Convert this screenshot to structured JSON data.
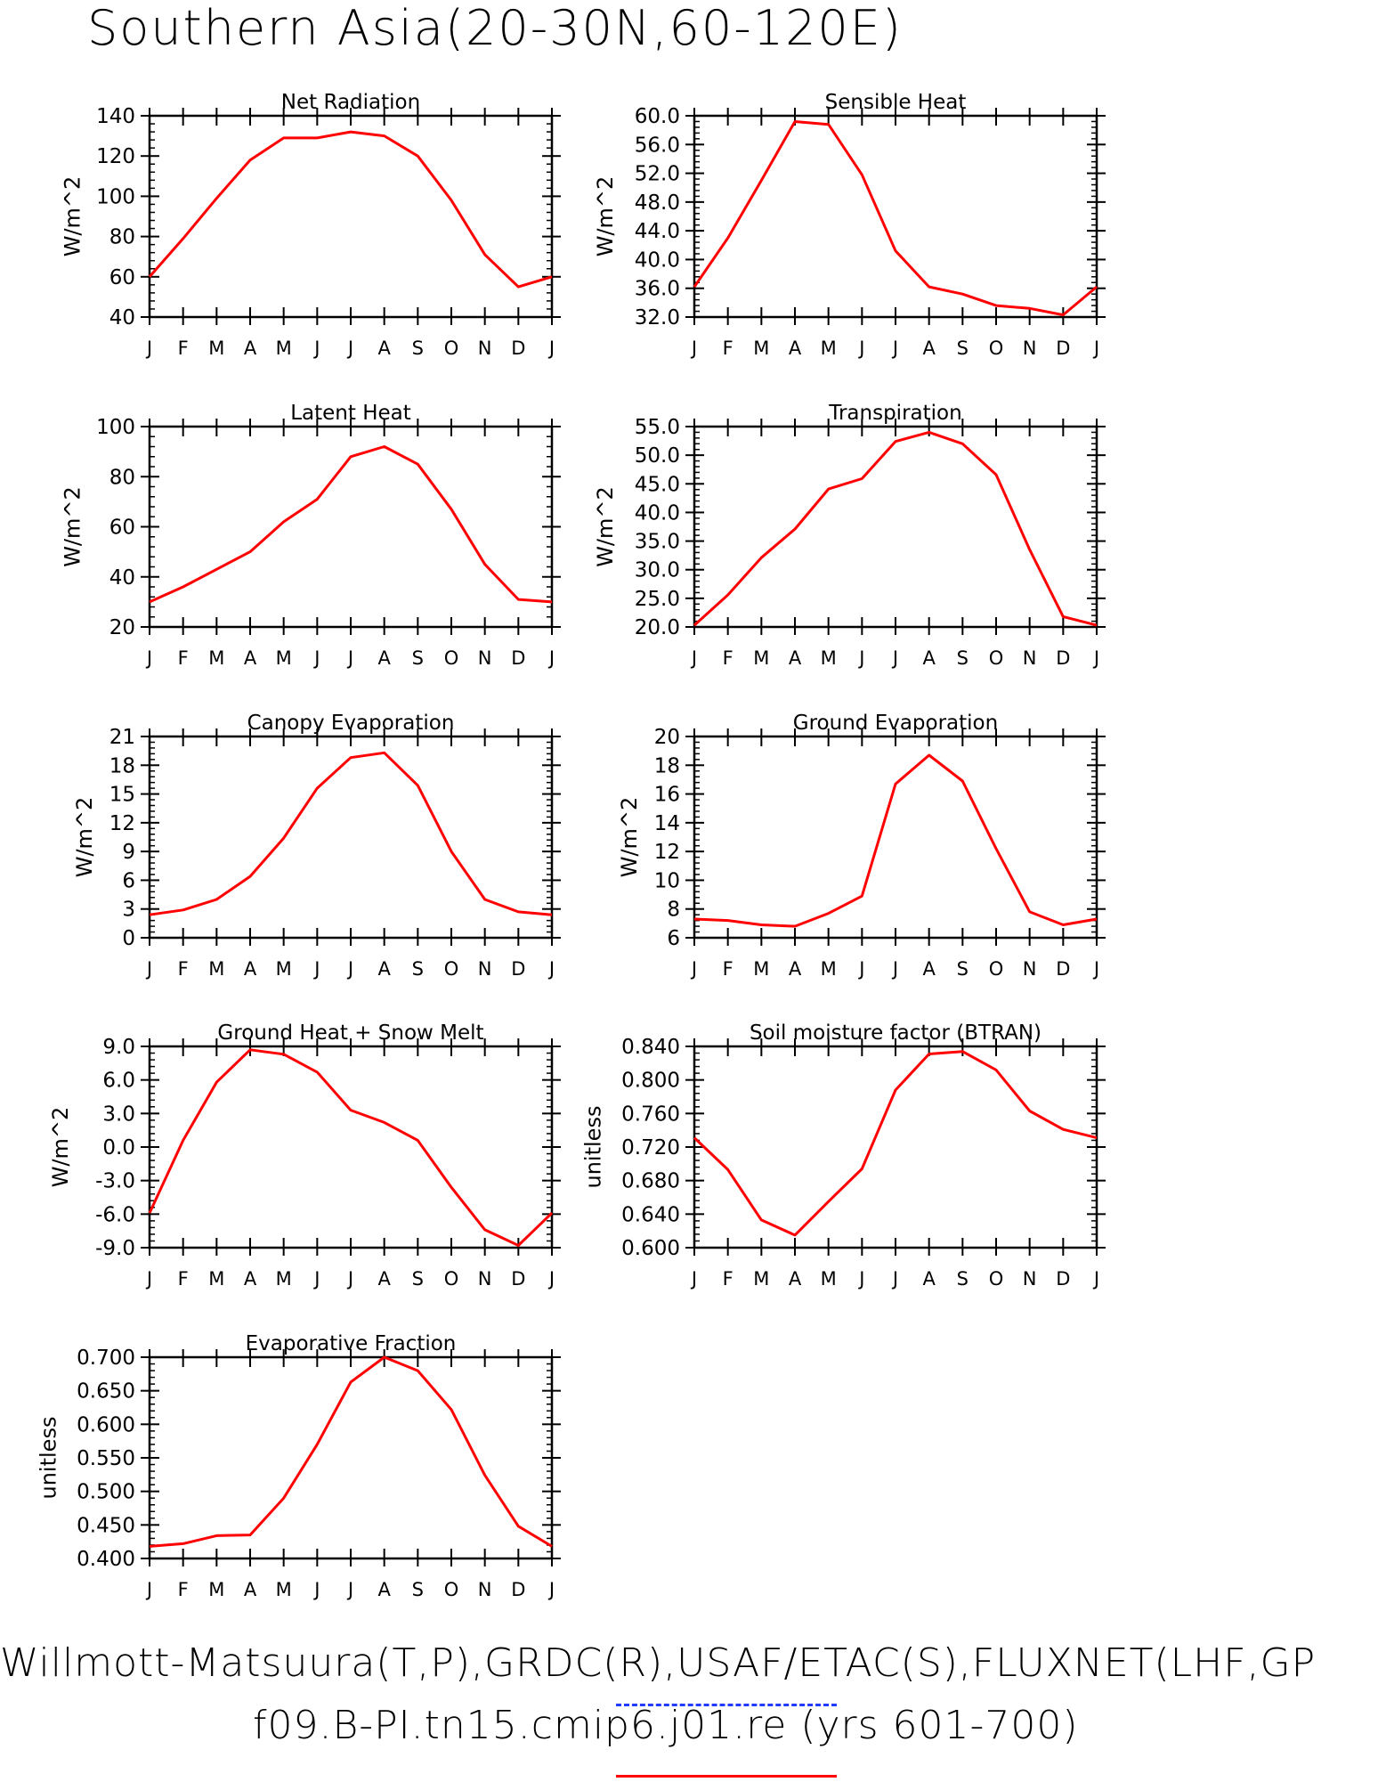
{
  "figure": {
    "title": "Southern Asia(20-30N,60-120E)",
    "credit_line": "Willmott-Matsuura(T,P),GRDC(R),USAF/ETAC(S),FLUXNET(LHF,GP",
    "case_line": "f09.B-PI.tn15.cmip6.j01.re (yrs 601-700)",
    "line_color": "#ff0000",
    "reference_color": "#1f3cff"
  },
  "chart_data": [
    {
      "type": "line",
      "title": "Net Radiation",
      "ylabel": "W/m^2",
      "categories": [
        "J",
        "F",
        "M",
        "A",
        "M",
        "J",
        "J",
        "A",
        "S",
        "O",
        "N",
        "D",
        "J"
      ],
      "values": [
        60,
        79,
        99,
        118,
        129,
        129,
        132,
        130,
        120,
        98,
        71,
        55,
        60
      ],
      "ylim": [
        40,
        140
      ],
      "yticks": [
        "40",
        "60",
        "80",
        "100",
        "120",
        "140"
      ]
    },
    {
      "type": "line",
      "title": "Sensible Heat",
      "ylabel": "W/m^2",
      "categories": [
        "J",
        "F",
        "M",
        "A",
        "M",
        "J",
        "J",
        "A",
        "S",
        "O",
        "N",
        "D",
        "J"
      ],
      "values": [
        36.2,
        43.0,
        51.0,
        59.2,
        58.8,
        51.8,
        41.2,
        36.2,
        35.2,
        33.6,
        33.2,
        32.3,
        36.2
      ],
      "ylim": [
        32,
        60
      ],
      "yticks": [
        "32.0",
        "36.0",
        "40.0",
        "44.0",
        "48.0",
        "52.0",
        "56.0",
        "60.0"
      ]
    },
    {
      "type": "line",
      "title": "Latent Heat",
      "ylabel": "W/m^2",
      "categories": [
        "J",
        "F",
        "M",
        "A",
        "M",
        "J",
        "J",
        "A",
        "S",
        "O",
        "N",
        "D",
        "J"
      ],
      "values": [
        30,
        36,
        43,
        50,
        62,
        71,
        88,
        92,
        85,
        67,
        45,
        31,
        30
      ],
      "ylim": [
        20,
        100
      ],
      "yticks": [
        "20",
        "40",
        "60",
        "80",
        "100"
      ]
    },
    {
      "type": "line",
      "title": "Transpiration",
      "ylabel": "W/m^2",
      "categories": [
        "J",
        "F",
        "M",
        "A",
        "M",
        "J",
        "J",
        "A",
        "S",
        "O",
        "N",
        "D",
        "J"
      ],
      "values": [
        20.3,
        25.6,
        32.1,
        37.1,
        44.1,
        45.9,
        52.4,
        54.0,
        52.0,
        46.6,
        33.5,
        21.8,
        20.3
      ],
      "ylim": [
        20,
        55
      ],
      "yticks": [
        "20.0",
        "25.0",
        "30.0",
        "35.0",
        "40.0",
        "45.0",
        "50.0",
        "55.0"
      ]
    },
    {
      "type": "line",
      "title": "Canopy Evaporation",
      "ylabel": "W/m^2",
      "categories": [
        "J",
        "F",
        "M",
        "A",
        "M",
        "J",
        "J",
        "A",
        "S",
        "O",
        "N",
        "D",
        "J"
      ],
      "values": [
        2.4,
        2.9,
        4.0,
        6.4,
        10.4,
        15.6,
        18.8,
        19.3,
        15.9,
        9.0,
        4.0,
        2.7,
        2.4
      ],
      "ylim": [
        0,
        21
      ],
      "yticks": [
        "0",
        "3",
        "6",
        "9",
        "12",
        "15",
        "18",
        "21"
      ]
    },
    {
      "type": "line",
      "title": "Ground Evaporation",
      "ylabel": "W/m^2",
      "categories": [
        "J",
        "F",
        "M",
        "A",
        "M",
        "J",
        "J",
        "A",
        "S",
        "O",
        "N",
        "D",
        "J"
      ],
      "values": [
        7.3,
        7.2,
        6.9,
        6.8,
        7.7,
        8.9,
        16.7,
        18.7,
        16.9,
        12.2,
        7.8,
        6.9,
        7.3
      ],
      "ylim": [
        6,
        20
      ],
      "yticks": [
        "6",
        "8",
        "10",
        "12",
        "14",
        "16",
        "18",
        "20"
      ]
    },
    {
      "type": "line",
      "title": "Ground Heat + Snow Melt",
      "ylabel": "W/m^2",
      "categories": [
        "J",
        "F",
        "M",
        "A",
        "M",
        "J",
        "J",
        "A",
        "S",
        "O",
        "N",
        "D",
        "J"
      ],
      "values": [
        -5.9,
        0.6,
        5.8,
        8.7,
        8.3,
        6.7,
        3.3,
        2.2,
        0.6,
        -3.6,
        -7.4,
        -8.8,
        -5.9
      ],
      "ylim": [
        -9,
        9
      ],
      "yticks": [
        "-9.0",
        "-6.0",
        "-3.0",
        "0.0",
        "3.0",
        "6.0",
        "9.0"
      ]
    },
    {
      "type": "line",
      "title": "Soil moisture factor (BTRAN)",
      "ylabel": "unitless",
      "categories": [
        "J",
        "F",
        "M",
        "A",
        "M",
        "J",
        "J",
        "A",
        "S",
        "O",
        "N",
        "D",
        "J"
      ],
      "values": [
        0.731,
        0.693,
        0.633,
        0.615,
        0.655,
        0.694,
        0.788,
        0.831,
        0.834,
        0.812,
        0.763,
        0.741,
        0.731
      ],
      "ylim": [
        0.6,
        0.84
      ],
      "yticks": [
        "0.600",
        "0.640",
        "0.680",
        "0.720",
        "0.760",
        "0.800",
        "0.840"
      ]
    },
    {
      "type": "line",
      "title": "Evaporative Fraction",
      "ylabel": "unitless",
      "categories": [
        "J",
        "F",
        "M",
        "A",
        "M",
        "J",
        "J",
        "A",
        "S",
        "O",
        "N",
        "D",
        "J"
      ],
      "values": [
        0.418,
        0.422,
        0.434,
        0.435,
        0.49,
        0.57,
        0.663,
        0.7,
        0.68,
        0.622,
        0.524,
        0.448,
        0.418
      ],
      "ylim": [
        0.4,
        0.7
      ],
      "yticks": [
        "0.400",
        "0.450",
        "0.500",
        "0.550",
        "0.600",
        "0.650",
        "0.700"
      ]
    }
  ]
}
